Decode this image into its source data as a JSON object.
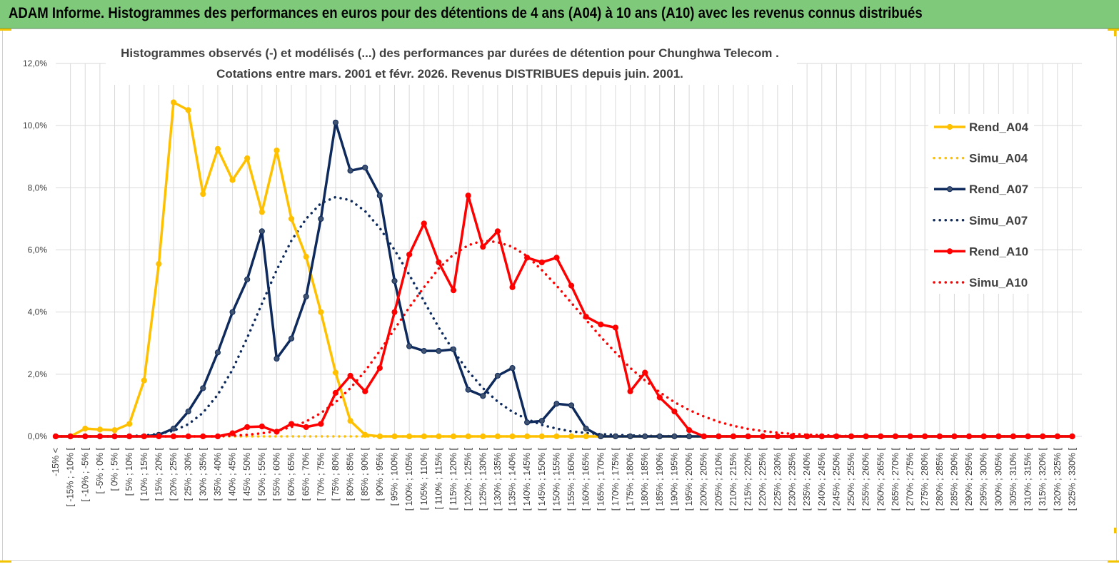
{
  "header": {
    "title": "ADAM Informe. Histogrammes des performances en euros pour des détentions de 4 ans (A04) à 10 ans (A10) avec les revenus connus distribués"
  },
  "colors": {
    "banner": "#7fc97a",
    "A04": "#ffc000",
    "A07": "#0e2a5c",
    "A10": "#ff0000",
    "grid": "#d9d9d9",
    "corner_accent": "#f4c300"
  },
  "chart_data": {
    "type": "line",
    "title": [
      "Histogrammes observés (-) et modélisés (...) des performances par durées de détention pour Chunghwa Telecom .",
      "Cotations entre mars. 2001 et févr. 2026. Revenus DISTRIBUES depuis juin. 2001."
    ],
    "xlabel": "",
    "ylabel": "",
    "ylim": [
      0,
      12
    ],
    "y_ticks": [
      "0,0%",
      "2,0%",
      "4,0%",
      "6,0%",
      "8,0%",
      "10,0%",
      "12,0%"
    ],
    "y_unit": "%",
    "grid": true,
    "legend_position": "right",
    "categories": [
      "-15% <",
      "[ -15% ; -10% [",
      "[ -10% ; -5% [",
      "[ -5% ; 0% [",
      "[ 0% ; 5% [",
      "[ 5% ; 10% [",
      "[ 10% ; 15% [",
      "[ 15% ; 20% [",
      "[ 20% ; 25% [",
      "[ 25% ; 30% [",
      "[ 30% ; 35% [",
      "[ 35% ; 40% [",
      "[ 40% ; 45% [",
      "[ 45% ; 50% [",
      "[ 50% ; 55% [",
      "[ 55% ; 60% [",
      "[ 60% ; 65% [",
      "[ 65% ; 70% [",
      "[ 70% ; 75% [",
      "[ 75% ; 80% [",
      "[ 80% ; 85% [",
      "[ 85% ; 90% [",
      "[ 90% ; 95% [",
      "[ 95% ; 100% [",
      "[ 100% ; 105% [",
      "[ 105% ; 110% [",
      "[ 110% ; 115% [",
      "[ 115% ; 120% [",
      "[ 120% ; 125% [",
      "[ 125% ; 130% [",
      "[ 130% ; 135% [",
      "[ 135% ; 140% [",
      "[ 140% ; 145% [",
      "[ 145% ; 150% [",
      "[ 150% ; 155% [",
      "[ 155% ; 160% [",
      "[ 160% ; 165% [",
      "[ 165% ; 170% [",
      "[ 170% ; 175% [",
      "[ 175% ; 180% [",
      "[ 180% ; 185% [",
      "[ 185% ; 190% [",
      "[ 190% ; 195% [",
      "[ 195% ; 200% [",
      "[ 200% ; 205% [",
      "[ 205% ; 210% [",
      "[ 210% ; 215% [",
      "[ 215% ; 220% [",
      "[ 220% ; 225% [",
      "[ 225% ; 230% [",
      "[ 230% ; 235% [",
      "[ 235% ; 240% [",
      "[ 240% ; 245% [",
      "[ 245% ; 250% [",
      "[ 250% ; 255% [",
      "[ 255% ; 260% [",
      "[ 260% ; 265% [",
      "[ 265% ; 270% [",
      "[ 270% ; 275% [",
      "[ 275% ; 280% [",
      "[ 280% ; 285% [",
      "[ 285% ; 290% [",
      "[ 290% ; 295% [",
      "[ 295% ; 300% [",
      "[ 300% ; 305% [",
      "[ 305% ; 310% [",
      "[ 310% ; 315% [",
      "[ 315% ; 320% [",
      "[ 320% ; 325% [",
      "[ 325% ; 330% ["
    ],
    "series": [
      {
        "name": "Rend_A04",
        "style": "solid-markers",
        "color": "#ffc000",
        "values": [
          0,
          0,
          0.25,
          0.22,
          0.2,
          0.4,
          1.8,
          5.55,
          10.75,
          10.5,
          7.8,
          9.25,
          8.25,
          8.95,
          7.22,
          9.2,
          7.0,
          5.78,
          4.0,
          2.05,
          0.5,
          0.05,
          0,
          0,
          0,
          0,
          0,
          0,
          0,
          0,
          0,
          0,
          0,
          0,
          0,
          0,
          0,
          0,
          0,
          0,
          0,
          0,
          0,
          0,
          0,
          0,
          0,
          0,
          0,
          0,
          0,
          0,
          0,
          0,
          0,
          0,
          0,
          0,
          0,
          0,
          0,
          0,
          0,
          0,
          0,
          0,
          0,
          0,
          0,
          0
        ]
      },
      {
        "name": "Simu_A04",
        "style": "dotted",
        "color": "#ffc000",
        "values": [
          0,
          0,
          0,
          0,
          0,
          0,
          0,
          0,
          0,
          0,
          0,
          0,
          0,
          0,
          0,
          0,
          0,
          0,
          0,
          0,
          0,
          0,
          0,
          0,
          0,
          0,
          0,
          0,
          0,
          0,
          0,
          0,
          0,
          0,
          0,
          0,
          0,
          0,
          0,
          0,
          0,
          0,
          0,
          0,
          0,
          0,
          0,
          0,
          0,
          0,
          0,
          0,
          0,
          0,
          0,
          0,
          0,
          0,
          0,
          0,
          0,
          0,
          0,
          0,
          0,
          0,
          0,
          0,
          0,
          0
        ]
      },
      {
        "name": "Rend_A07",
        "style": "solid-markers",
        "color": "#0e2a5c",
        "values": [
          0,
          0,
          0,
          0,
          0,
          0,
          0,
          0.05,
          0.25,
          0.8,
          1.55,
          2.7,
          4.0,
          5.05,
          6.6,
          2.5,
          3.15,
          4.5,
          7.0,
          10.1,
          8.55,
          8.65,
          7.75,
          5.0,
          2.9,
          2.75,
          2.75,
          2.8,
          1.5,
          1.3,
          1.95,
          2.2,
          0.45,
          0.5,
          1.05,
          1.0,
          0.25,
          0,
          0,
          0,
          0,
          0,
          0,
          0,
          0,
          0,
          0,
          0,
          0,
          0,
          0,
          0,
          0,
          0,
          0,
          0,
          0,
          0,
          0,
          0,
          0,
          0,
          0,
          0,
          0,
          0,
          0,
          0,
          0,
          0
        ]
      },
      {
        "name": "Simu_A07",
        "style": "dotted",
        "color": "#0e2a5c",
        "values": [
          0,
          0,
          0,
          0,
          0,
          0.01,
          0.03,
          0.08,
          0.18,
          0.39,
          0.76,
          1.34,
          2.15,
          3.17,
          4.27,
          5.35,
          6.3,
          7.0,
          7.5,
          7.7,
          7.6,
          7.25,
          6.7,
          6.0,
          5.2,
          4.35,
          3.5,
          2.75,
          2.1,
          1.55,
          1.12,
          0.79,
          0.55,
          0.37,
          0.25,
          0.16,
          0.11,
          0.07,
          0.05,
          0.03,
          0.02,
          0.01,
          0.01,
          0,
          0,
          0,
          0,
          0,
          0,
          0,
          0,
          0,
          0,
          0,
          0,
          0,
          0,
          0,
          0,
          0,
          0,
          0,
          0,
          0,
          0,
          0,
          0,
          0,
          0,
          0
        ]
      },
      {
        "name": "Rend_A10",
        "style": "solid-markers",
        "color": "#ff0000",
        "values": [
          0,
          0,
          0,
          0,
          0,
          0,
          0,
          0,
          0,
          0,
          0,
          0,
          0.1,
          0.3,
          0.32,
          0.15,
          0.4,
          0.3,
          0.4,
          1.4,
          1.95,
          1.45,
          2.2,
          4.0,
          5.85,
          6.85,
          5.6,
          4.7,
          7.75,
          6.1,
          6.6,
          4.8,
          5.75,
          5.6,
          5.75,
          4.85,
          3.85,
          3.6,
          3.5,
          1.45,
          2.05,
          1.25,
          0.8,
          0.2,
          0,
          0,
          0,
          0,
          0,
          0,
          0,
          0,
          0,
          0,
          0,
          0,
          0,
          0,
          0,
          0,
          0,
          0,
          0,
          0,
          0,
          0,
          0,
          0,
          0,
          0
        ]
      },
      {
        "name": "Simu_A10",
        "style": "dotted",
        "color": "#ff0000",
        "values": [
          0,
          0,
          0,
          0,
          0,
          0,
          0,
          0,
          0,
          0,
          0,
          0,
          0.02,
          0.05,
          0.1,
          0.17,
          0.3,
          0.48,
          0.75,
          1.1,
          1.55,
          2.1,
          2.75,
          3.45,
          4.15,
          4.8,
          5.4,
          5.85,
          6.15,
          6.3,
          6.25,
          6.1,
          5.8,
          5.35,
          4.85,
          4.3,
          3.75,
          3.2,
          2.7,
          2.2,
          1.8,
          1.42,
          1.1,
          0.85,
          0.64,
          0.47,
          0.34,
          0.24,
          0.17,
          0.12,
          0.08,
          0.05,
          0.04,
          0.02,
          0.01,
          0.01,
          0,
          0,
          0,
          0,
          0,
          0,
          0,
          0,
          0,
          0,
          0,
          0,
          0,
          0
        ]
      }
    ]
  }
}
